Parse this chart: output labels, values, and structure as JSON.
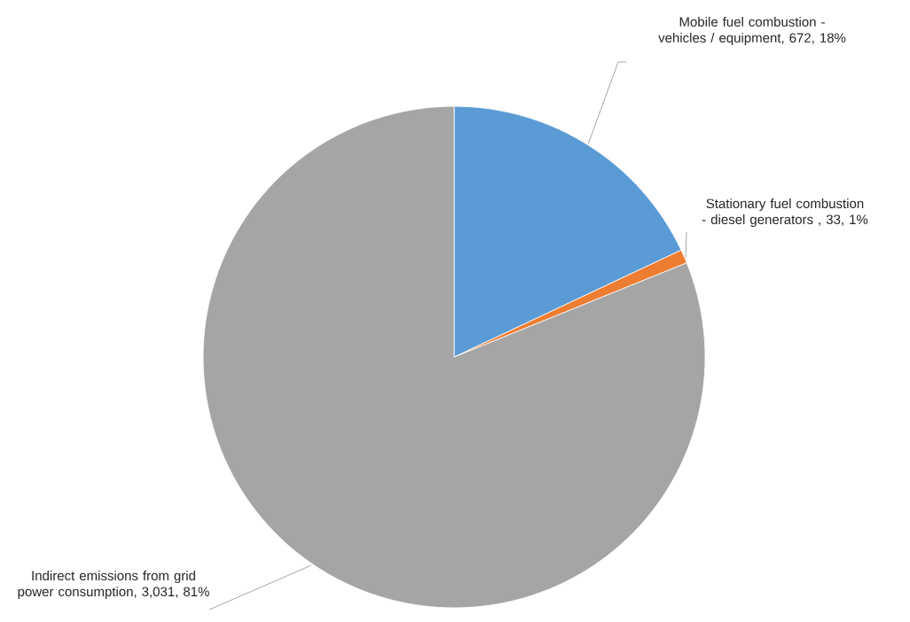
{
  "chart_data": {
    "type": "pie",
    "categories": [
      "Mobile fuel combustion - vehicles / equipment, 672, 18%",
      "Stationary fuel combustion - diesel generators , 33, 1%",
      "Indirect emissions from grid power consumption, 3,031, 81%"
    ],
    "values": [
      672,
      33,
      3031
    ],
    "colors": [
      "#5b9bd5",
      "#ed7d31",
      "#a5a5a5"
    ]
  }
}
